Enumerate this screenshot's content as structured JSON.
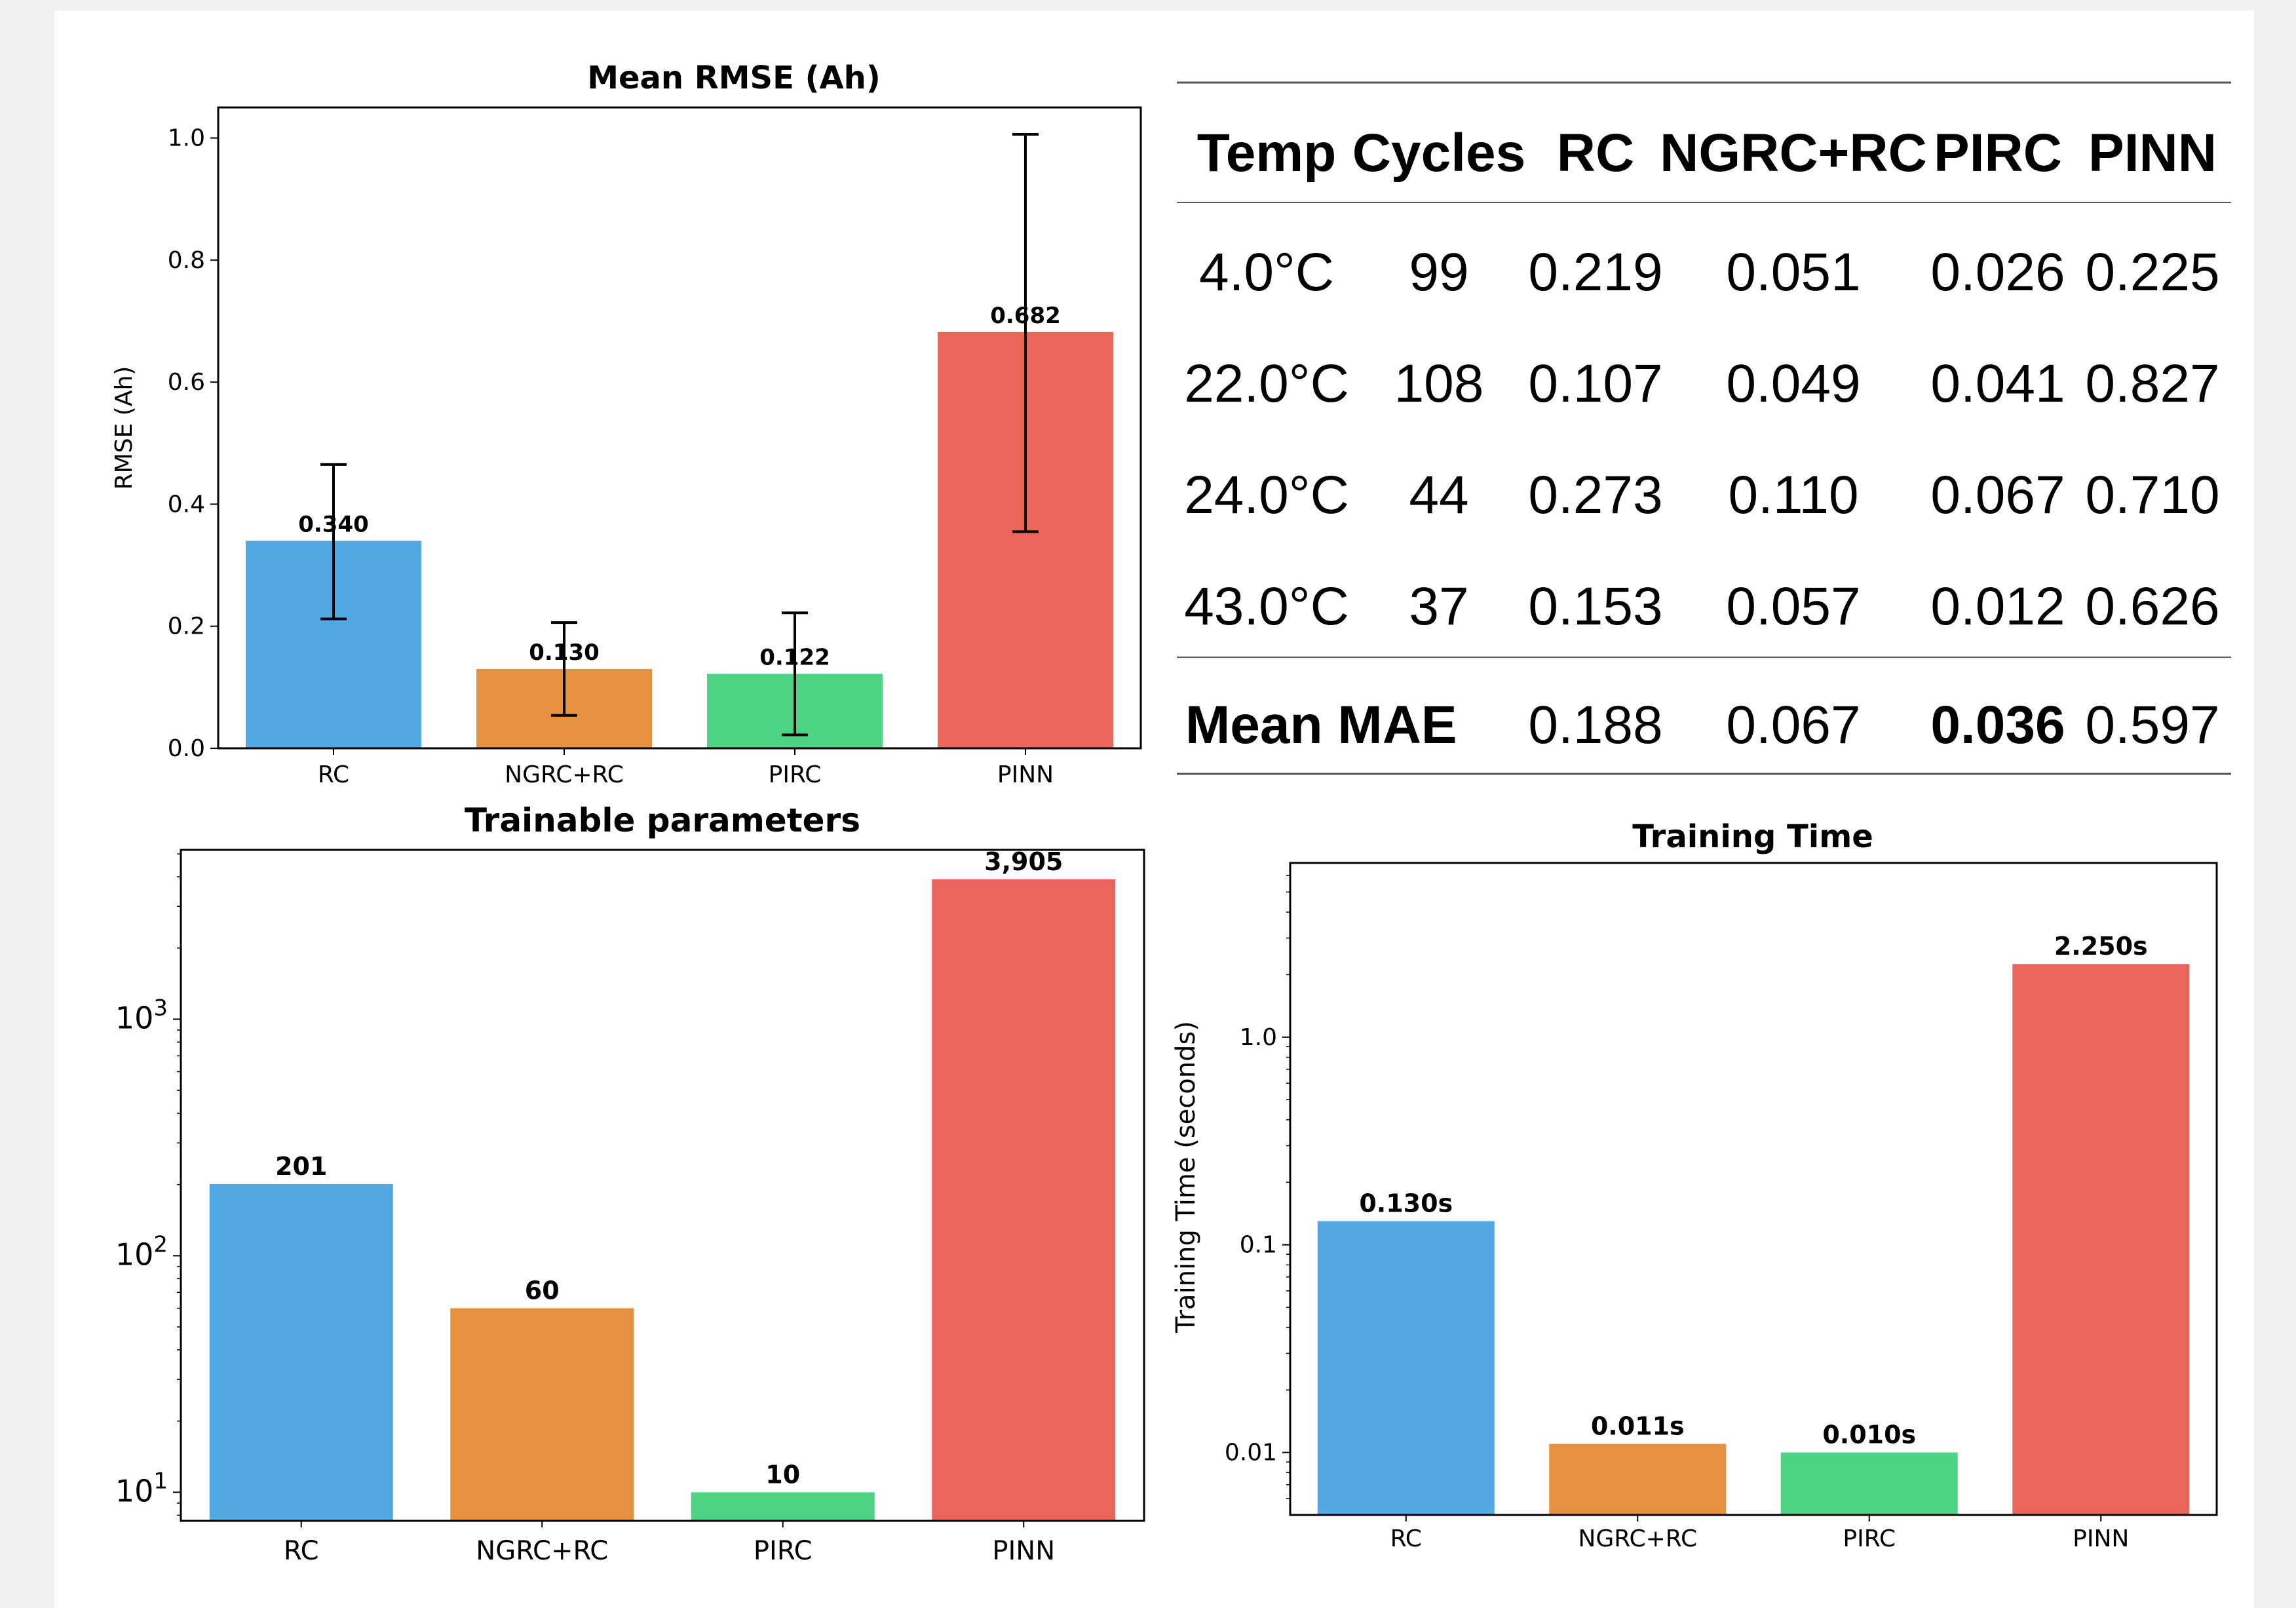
{
  "colors": {
    "rc": "#52a8e0",
    "ngrc_rc": "#e59140",
    "pirc": "#4dd383",
    "pinn": "#ea665a",
    "highlight": "#ee1c1c"
  },
  "chart_data": [
    {
      "id": "rmse",
      "type": "bar",
      "title": "Mean RMSE (Ah)",
      "xlabel": "",
      "ylabel": "RMSE (Ah)",
      "categories": [
        "RC",
        "NGRC+RC",
        "PIRC",
        "PINN"
      ],
      "values": [
        0.34,
        0.13,
        0.122,
        0.682
      ],
      "error_low": [
        0.212,
        0.054,
        0.022,
        0.355
      ],
      "error_high": [
        0.465,
        0.206,
        0.222,
        1.006
      ],
      "value_labels": [
        "0.340",
        "0.130",
        "0.122",
        "0.682"
      ],
      "ylim": [
        0,
        1.05
      ],
      "yscale": "linear",
      "yticks": [
        0.0,
        0.2,
        0.4,
        0.6,
        0.8,
        1.0
      ],
      "ytick_labels": [
        "0.0",
        "0.2",
        "0.4",
        "0.6",
        "0.8",
        "1.0"
      ],
      "grid": false
    },
    {
      "id": "params",
      "type": "bar",
      "title": "Trainable parameters",
      "xlabel": "",
      "ylabel": "",
      "categories": [
        "RC",
        "NGRC+RC",
        "PIRC",
        "PINN"
      ],
      "values": [
        201,
        60,
        10,
        3905
      ],
      "value_labels": [
        "201",
        "60",
        "10",
        "3,905"
      ],
      "ylim": [
        7.57,
        5200
      ],
      "yscale": "log",
      "yticks": [
        10,
        100,
        1000
      ],
      "ytick_labels": [
        {
          "base": "10",
          "exp": "1"
        },
        {
          "base": "10",
          "exp": "2"
        },
        {
          "base": "10",
          "exp": "3"
        }
      ],
      "grid": false
    },
    {
      "id": "time",
      "type": "bar",
      "title": "Training Time",
      "xlabel": "",
      "ylabel": "Training Time (seconds)",
      "categories": [
        "RC",
        "NGRC+RC",
        "PIRC",
        "PINN"
      ],
      "values": [
        0.13,
        0.011,
        0.01,
        2.25
      ],
      "value_labels": [
        "0.130s",
        "0.011s",
        "0.010s",
        "2.250s"
      ],
      "ylim": [
        0.005,
        6.9
      ],
      "yscale": "log",
      "yticks": [
        0.01,
        0.1,
        1.0
      ],
      "ytick_labels": [
        "0.01",
        "0.1",
        "1.0"
      ],
      "grid": false
    },
    {
      "id": "table",
      "type": "table",
      "headers": [
        "Temp",
        "Cycles",
        "RC",
        "NGRC+RC",
        "PIRC",
        "PINN"
      ],
      "highlight_column": "PIRC",
      "rows": [
        [
          "4.0°C",
          "99",
          "0.219",
          "0.051",
          "0.026",
          "0.225"
        ],
        [
          "22.0°C",
          "108",
          "0.107",
          "0.049",
          "0.041",
          "0.827"
        ],
        [
          "24.0°C",
          "44",
          "0.273",
          "0.110",
          "0.067",
          "0.710"
        ],
        [
          "43.0°C",
          "37",
          "0.153",
          "0.057",
          "0.012",
          "0.626"
        ]
      ],
      "summary_row": {
        "label": "Mean MAE",
        "values": [
          "0.188",
          "0.067",
          "0.036",
          "0.597"
        ]
      }
    }
  ]
}
